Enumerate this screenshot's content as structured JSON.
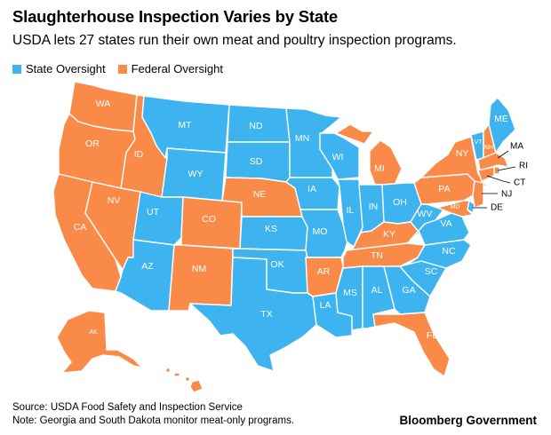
{
  "title": "Slaughterhouse Inspection Varies by State",
  "subtitle": "USDA lets 27 states run their own meat and poultry inspection programs.",
  "legend": {
    "state": {
      "label": "State Oversight",
      "color": "#3db3ef"
    },
    "federal": {
      "label": "Federal Oversight",
      "color": "#f98a48"
    }
  },
  "states": {
    "WA": {
      "label": "WA",
      "oversight": "federal"
    },
    "OR": {
      "label": "OR",
      "oversight": "federal"
    },
    "CA": {
      "label": "CA",
      "oversight": "federal"
    },
    "ID": {
      "label": "ID",
      "oversight": "federal"
    },
    "NV": {
      "label": "NV",
      "oversight": "federal"
    },
    "MT": {
      "label": "MT",
      "oversight": "state"
    },
    "WY": {
      "label": "WY",
      "oversight": "state"
    },
    "UT": {
      "label": "UT",
      "oversight": "state"
    },
    "AZ": {
      "label": "AZ",
      "oversight": "state"
    },
    "CO": {
      "label": "CO",
      "oversight": "federal"
    },
    "NM": {
      "label": "NM",
      "oversight": "federal"
    },
    "ND": {
      "label": "ND",
      "oversight": "state"
    },
    "SD": {
      "label": "SD",
      "oversight": "state"
    },
    "NE": {
      "label": "NE",
      "oversight": "federal"
    },
    "KS": {
      "label": "KS",
      "oversight": "state"
    },
    "OK": {
      "label": "OK",
      "oversight": "state"
    },
    "TX": {
      "label": "TX",
      "oversight": "state"
    },
    "MN": {
      "label": "MN",
      "oversight": "state"
    },
    "IA": {
      "label": "IA",
      "oversight": "state"
    },
    "MO": {
      "label": "MO",
      "oversight": "state"
    },
    "AR": {
      "label": "AR",
      "oversight": "federal"
    },
    "LA": {
      "label": "LA",
      "oversight": "state"
    },
    "WI": {
      "label": "WI",
      "oversight": "state"
    },
    "IL": {
      "label": "IL",
      "oversight": "state"
    },
    "MI": {
      "label": "MI",
      "oversight": "federal"
    },
    "IN": {
      "label": "IN",
      "oversight": "state"
    },
    "OH": {
      "label": "OH",
      "oversight": "state"
    },
    "KY": {
      "label": "KY",
      "oversight": "federal"
    },
    "TN": {
      "label": "TN",
      "oversight": "federal"
    },
    "MS": {
      "label": "MS",
      "oversight": "state"
    },
    "AL": {
      "label": "AL",
      "oversight": "state"
    },
    "GA": {
      "label": "GA",
      "oversight": "state"
    },
    "FL": {
      "label": "FL",
      "oversight": "federal"
    },
    "SC": {
      "label": "SC",
      "oversight": "state"
    },
    "NC": {
      "label": "NC",
      "oversight": "state"
    },
    "VA": {
      "label": "VA",
      "oversight": "state"
    },
    "WV": {
      "label": "WV",
      "oversight": "state"
    },
    "PA": {
      "label": "PA",
      "oversight": "federal"
    },
    "NY": {
      "label": "NY",
      "oversight": "federal"
    },
    "VT": {
      "label": "VT",
      "oversight": "state"
    },
    "NH": {
      "label": "NH",
      "oversight": "federal"
    },
    "ME": {
      "label": "ME",
      "oversight": "state"
    },
    "MA": {
      "label": "MA",
      "oversight": "federal"
    },
    "RI": {
      "label": "RI",
      "oversight": "federal"
    },
    "CT": {
      "label": "CT",
      "oversight": "federal"
    },
    "NJ": {
      "label": "NJ",
      "oversight": "federal"
    },
    "DE": {
      "label": "DE",
      "oversight": "state"
    },
    "MD": {
      "label": "MD",
      "oversight": "federal"
    },
    "AK": {
      "label": "AK",
      "oversight": "federal"
    },
    "HI": {
      "label": "",
      "oversight": "federal"
    }
  },
  "footer": {
    "source": "Source: USDA Food Safety and Inspection Service",
    "note": "Note: Georgia and South Dakota monitor meat-only programs."
  },
  "brand": "Bloomberg Government"
}
